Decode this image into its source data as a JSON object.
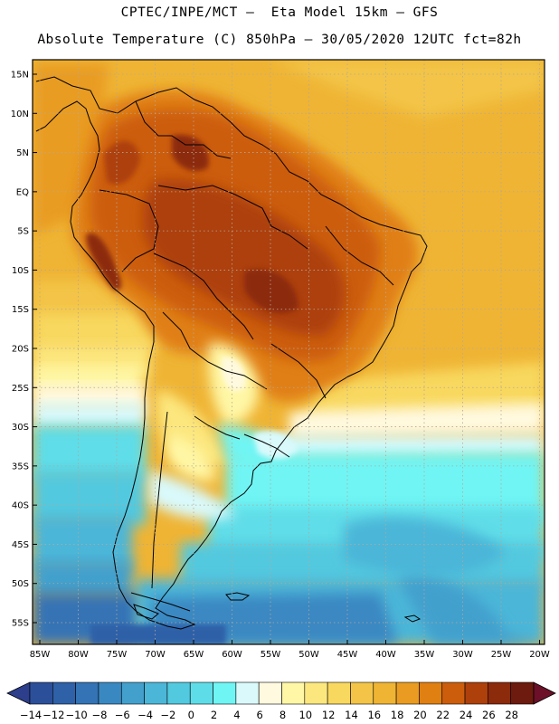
{
  "header": {
    "line1": "CPTEC/INPE/MCT –  Eta Model 15km – GFS",
    "line2": "Absolute Temperature (C) 850hPa – 30/05/2020 12UTC fct=82h"
  },
  "map": {
    "region": "South America",
    "variable": "Absolute Temperature (C) 850hPa",
    "lat_labels": [
      "15N",
      "10N",
      "5N",
      "EQ",
      "5S",
      "10S",
      "15S",
      "20S",
      "25S",
      "30S",
      "35S",
      "40S",
      "45S",
      "50S",
      "55S"
    ],
    "lon_labels": [
      "85W",
      "80W",
      "75W",
      "70W",
      "65W",
      "60W",
      "55W",
      "50W",
      "45W",
      "40W",
      "35W",
      "30W",
      "25W",
      "20W"
    ]
  },
  "colorbar": {
    "ticks": [
      "−14",
      "−12",
      "−10",
      "−8",
      "−6",
      "−4",
      "−2",
      "0",
      "2",
      "4",
      "6",
      "8",
      "10",
      "12",
      "14",
      "16",
      "18",
      "20",
      "22",
      "24",
      "26",
      "28"
    ],
    "colors": [
      "#2c4f9a",
      "#2f61a8",
      "#3473b5",
      "#3a88c2",
      "#43a0cd",
      "#4cb6d8",
      "#52c9df",
      "#5edde8",
      "#6ff5f4",
      "#d9f9fb",
      "#fff9df",
      "#fff7a6",
      "#fce77e",
      "#f8d85f",
      "#f3c447",
      "#efb434",
      "#e99c21",
      "#e07f12",
      "#cc5d0d",
      "#ad400b",
      "#8c2a0c",
      "#6d1b0e"
    ],
    "low_end_color": "#2c3e8c",
    "high_end_color": "#6b1028"
  }
}
